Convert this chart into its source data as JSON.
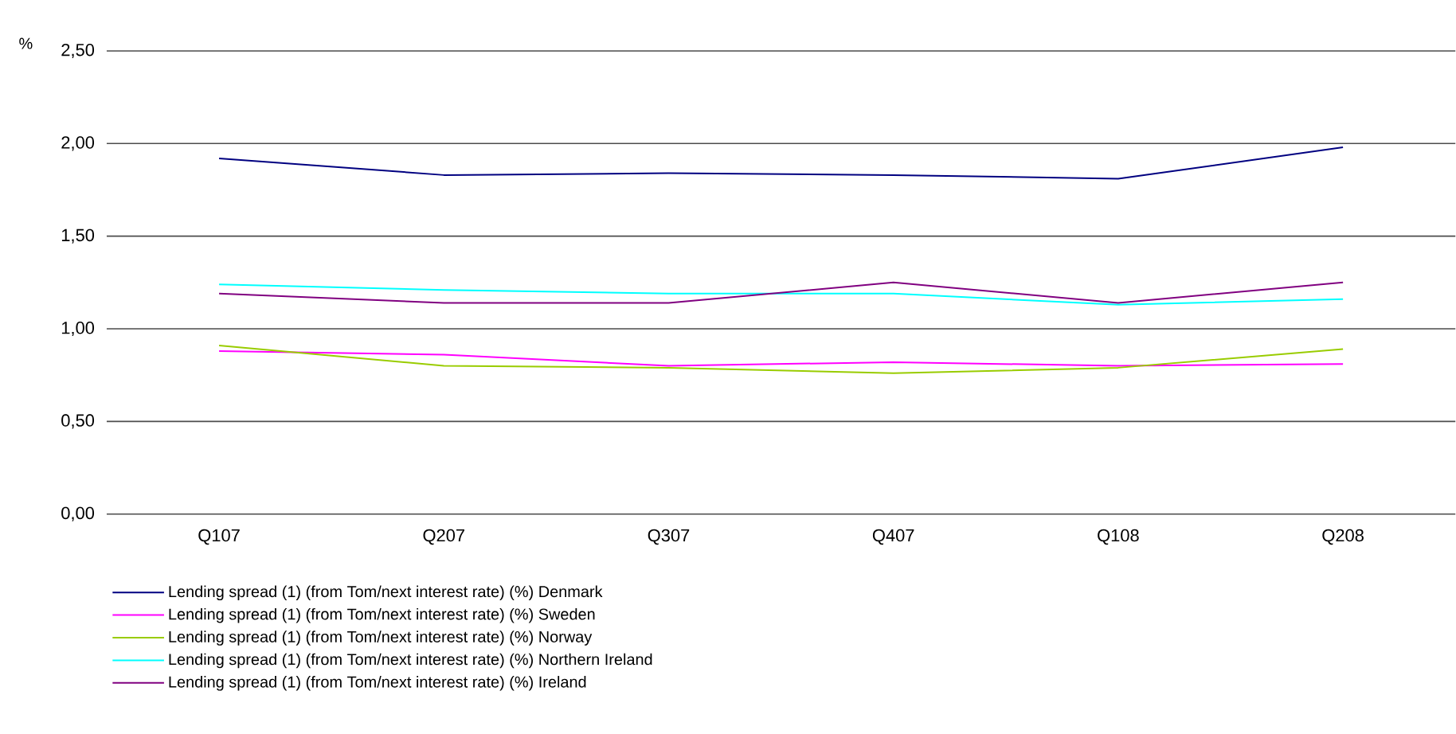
{
  "chart_data": {
    "type": "line",
    "ylabel": "%",
    "categories": [
      "Q107",
      "Q207",
      "Q307",
      "Q407",
      "Q108",
      "Q208"
    ],
    "series": [
      {
        "name": "Lending spread (1) (from Tom/next interest rate) (%) Denmark",
        "color": "#000080",
        "values": [
          1.92,
          1.83,
          1.84,
          1.83,
          1.81,
          1.98
        ]
      },
      {
        "name": "Lending spread (1) (from Tom/next interest rate) (%) Sweden",
        "color": "#ff00ff",
        "values": [
          0.88,
          0.86,
          0.8,
          0.82,
          0.8,
          0.81
        ]
      },
      {
        "name": "Lending spread (1) (from Tom/next interest rate) (%) Norway",
        "color": "#99cc00",
        "values": [
          0.91,
          0.8,
          0.79,
          0.76,
          0.79,
          0.89
        ]
      },
      {
        "name": "Lending spread (1) (from Tom/next interest rate) (%) Northern Ireland",
        "color": "#00ffff",
        "values": [
          1.24,
          1.21,
          1.19,
          1.19,
          1.13,
          1.16
        ]
      },
      {
        "name": "Lending spread (1) (from Tom/next interest rate) (%) Ireland",
        "color": "#800080",
        "values": [
          1.19,
          1.14,
          1.14,
          1.25,
          1.14,
          1.25
        ]
      }
    ],
    "ylim": [
      0,
      2.5
    ],
    "yticks": [
      {
        "value": 0,
        "label": "0,00"
      },
      {
        "value": 0.5,
        "label": "0,50"
      },
      {
        "value": 1,
        "label": "1,00"
      },
      {
        "value": 1.5,
        "label": "1,50"
      },
      {
        "value": 2,
        "label": "2,00"
      },
      {
        "value": 2.5,
        "label": "2,50"
      }
    ],
    "grid": "y",
    "legend": "bottom",
    "marker": "none",
    "line_style": "solid"
  }
}
